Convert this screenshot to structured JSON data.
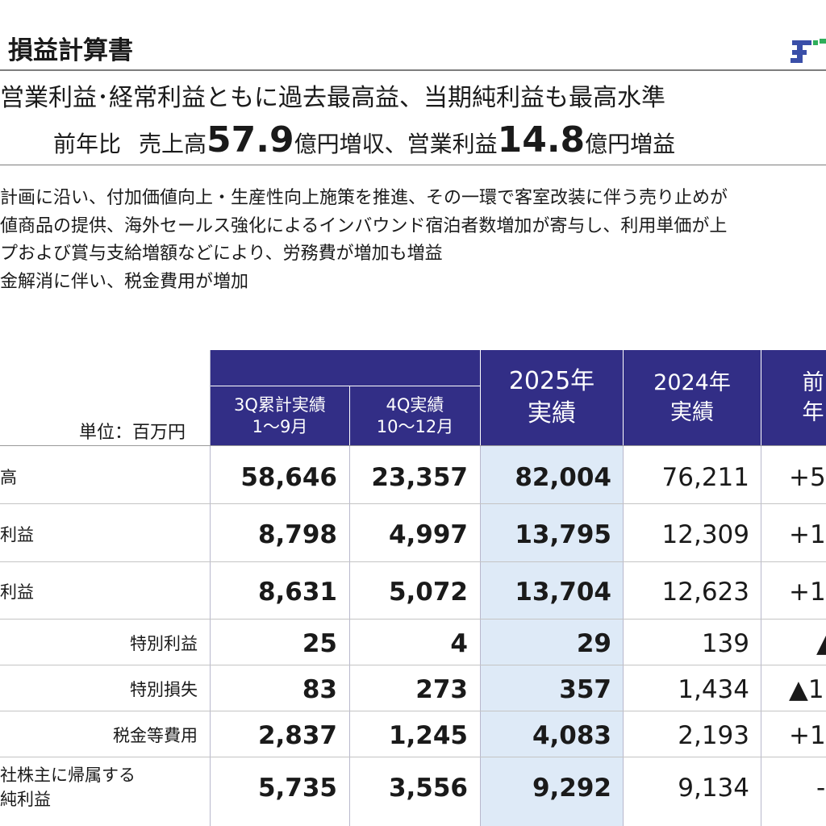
{
  "header": {
    "title": "損益計算書",
    "logo_text": "F"
  },
  "headline": {
    "line1": "営業利益･経常利益ともに過去最高益、当期純利益も最高水準",
    "line2_prefix": "前年比",
    "line2_sales_label": "売上高",
    "line2_sales_value": "57.9",
    "line2_sales_suffix": "億円増収、営業利益",
    "line2_op_value": "14.8",
    "line2_op_suffix": "億円増益"
  },
  "bullets": [
    "計画に沿い、付加価値向上・生産性向上施策を推進、その一環で客室改装に伴う売り止めが",
    "値商品の提供、海外セールス強化によるインバウンド宿泊者数増加が寄与し、利用単価が上",
    "プおよび賞与支給増額などにより、労務費が増加も増益",
    "金解消に伴い、税金費用が増加"
  ],
  "table": {
    "unit_label": "単位：百万円",
    "columns": {
      "q3_line1": "3Q累計実績",
      "q3_line2": "1～9月",
      "q4_line1": "4Q実績",
      "q4_line2": "10～12月",
      "fy2025_line1": "2025年",
      "fy2025_line2": "実績",
      "fy2024_line1": "2024年",
      "fy2024_line2": "実績",
      "yoy": "前年"
    },
    "rows": [
      {
        "label": "高",
        "q3": "58,646",
        "q4": "23,357",
        "fy2025": "82,004",
        "fy2024": "76,211",
        "yoy": "+5"
      },
      {
        "label": "利益",
        "q3": "8,798",
        "q4": "4,997",
        "fy2025": "13,795",
        "fy2024": "12,309",
        "yoy": "+1"
      },
      {
        "label": "利益",
        "q3": "8,631",
        "q4": "5,072",
        "fy2025": "13,704",
        "fy2024": "12,623",
        "yoy": "+1"
      },
      {
        "label": "特別利益",
        "q3": "25",
        "q4": "4",
        "fy2025": "29",
        "fy2024": "139",
        "yoy": "▲"
      },
      {
        "label": "特別損失",
        "q3": "83",
        "q4": "273",
        "fy2025": "357",
        "fy2024": "1,434",
        "yoy": "▲1"
      },
      {
        "label": "税金等費用",
        "q3": "2,837",
        "q4": "1,245",
        "fy2025": "4,083",
        "fy2024": "2,193",
        "yoy": "+1"
      },
      {
        "label_line1": "社株主に帰属する",
        "label_line2": "純利益",
        "q3": "5,735",
        "q4": "3,556",
        "fy2025": "9,292",
        "fy2024": "9,134",
        "yoy": "-"
      }
    ]
  },
  "colors": {
    "header_bg": "#322e86",
    "highlight_column": "#deeaf7",
    "logo_blue": "#3a4fa8",
    "logo_green": "#2fae5b"
  }
}
